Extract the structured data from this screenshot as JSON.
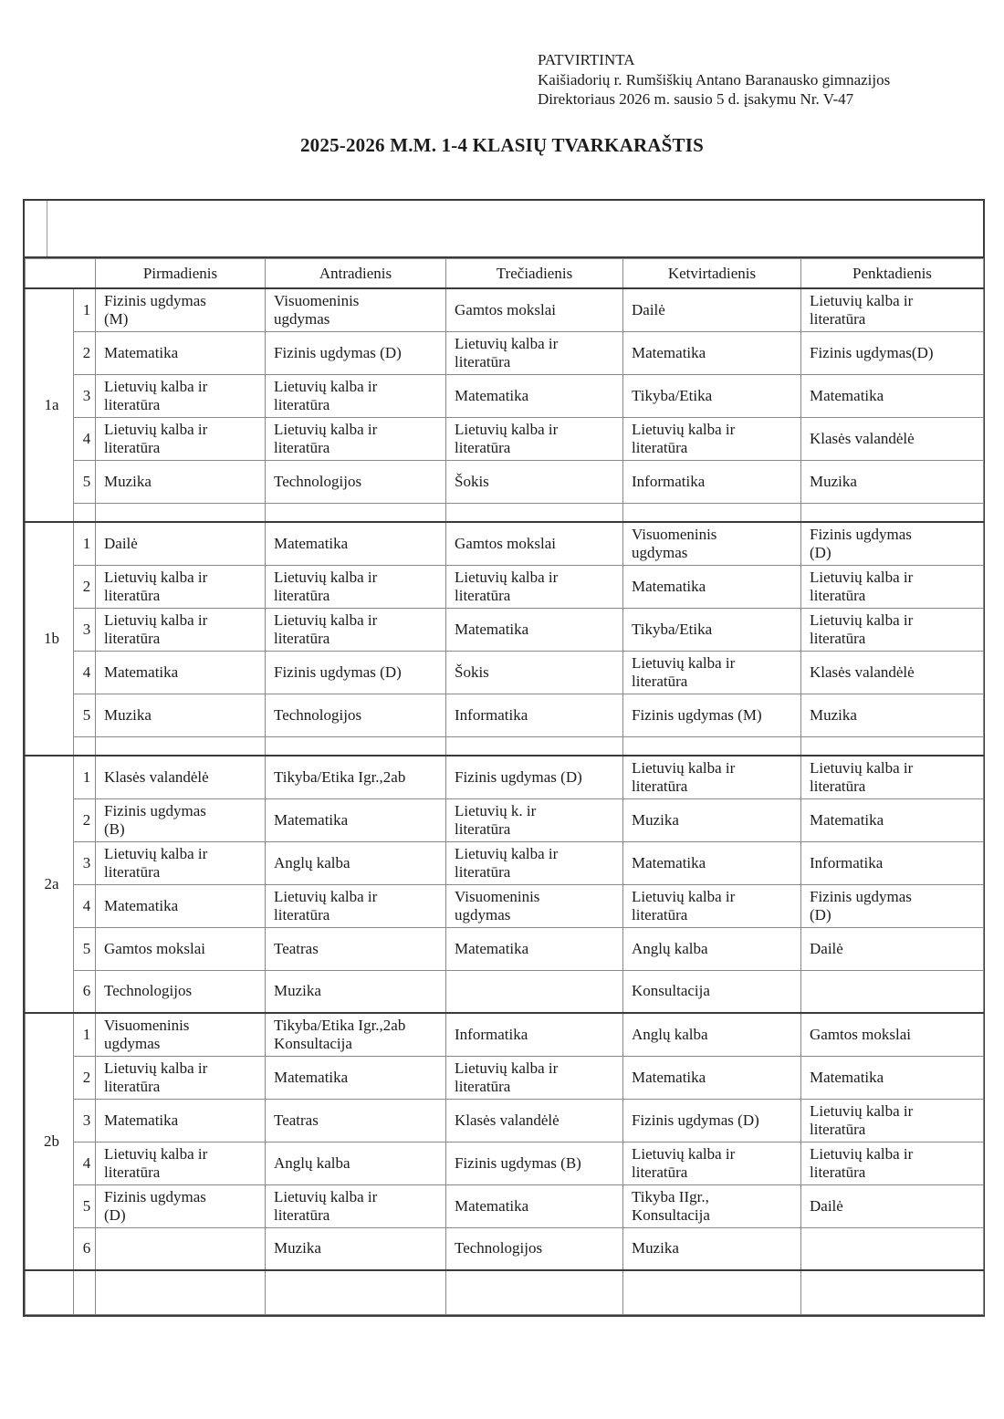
{
  "approval": {
    "lines": [
      "PATVIRTINTA",
      "Kaišiadorių r. Rumšiškių Antano Baranausko gimnazijos",
      "Direktoriaus 2026 m. sausio 5 d. įsakymu Nr. V-47"
    ]
  },
  "title": "2025-2026 M.M. 1-4 KLASIŲ TVARKARAŠTIS",
  "timetable": {
    "day_headers": [
      "Pirmadienis",
      "Antradienis",
      "Trečiadienis",
      "Ketvirtadienis",
      "Penktadienis"
    ],
    "groups": [
      {
        "label": "1a",
        "rows": [
          {
            "period": "1",
            "cells": [
              "Fizinis ugdymas\n(M)",
              "Visuomeninis\nugdymas",
              "Gamtos mokslai",
              "Dailė",
              "Lietuvių kalba ir\nliteratūra"
            ]
          },
          {
            "period": "2",
            "cells": [
              "Matematika",
              "Fizinis ugdymas (D)",
              "Lietuvių kalba ir\nliteratūra",
              "Matematika",
              "Fizinis ugdymas(D)"
            ]
          },
          {
            "period": "3",
            "cells": [
              "Lietuvių kalba ir\nliteratūra",
              "Lietuvių kalba ir\nliteratūra",
              "Matematika",
              "Tikyba/Etika",
              "Matematika"
            ]
          },
          {
            "period": "4",
            "cells": [
              "Lietuvių kalba ir\nliteratūra",
              "Lietuvių kalba ir\nliteratūra",
              "Lietuvių kalba ir\nliteratūra",
              "Lietuvių kalba ir\nliteratūra",
              "Klasės valandėlė"
            ]
          },
          {
            "period": "5",
            "cells": [
              "Muzika",
              "Technologijos",
              "Šokis",
              "Informatika",
              "Muzika"
            ]
          },
          {
            "period": "",
            "cells": [
              "",
              "",
              "",
              "",
              ""
            ]
          }
        ]
      },
      {
        "label": "1b",
        "rows": [
          {
            "period": "1",
            "cells": [
              "Dailė",
              "Matematika",
              "Gamtos mokslai",
              "Visuomeninis\nugdymas",
              "Fizinis ugdymas\n(D)"
            ]
          },
          {
            "period": "2",
            "cells": [
              "Lietuvių kalba ir\nliteratūra",
              "Lietuvių kalba ir\nliteratūra",
              "Lietuvių kalba ir\nliteratūra",
              "Matematika",
              "Lietuvių kalba ir\nliteratūra"
            ]
          },
          {
            "period": "3",
            "cells": [
              "Lietuvių kalba ir\nliteratūra",
              "Lietuvių kalba ir\nliteratūra",
              "Matematika",
              "Tikyba/Etika",
              "Lietuvių kalba ir\nliteratūra"
            ]
          },
          {
            "period": "4",
            "cells": [
              "Matematika",
              "Fizinis ugdymas (D)",
              "Šokis",
              "Lietuvių kalba ir\nliteratūra",
              "Klasės valandėlė"
            ]
          },
          {
            "period": "5",
            "cells": [
              "Muzika",
              "Technologijos",
              "Informatika",
              "Fizinis ugdymas (M)",
              "Muzika"
            ]
          },
          {
            "period": "",
            "cells": [
              "",
              "",
              "",
              "",
              ""
            ]
          }
        ]
      },
      {
        "label": "2a",
        "rows": [
          {
            "period": "1",
            "cells": [
              "Klasės valandėlė",
              "Tikyba/Etika Igr.,2ab",
              "Fizinis ugdymas (D)",
              "Lietuvių kalba ir\nliteratūra",
              "Lietuvių kalba ir\nliteratūra"
            ]
          },
          {
            "period": "2",
            "cells": [
              "Fizinis ugdymas\n(B)",
              "Matematika",
              "Lietuvių k. ir\nliteratūra",
              "Muzika",
              "Matematika"
            ]
          },
          {
            "period": "3",
            "cells": [
              "Lietuvių kalba ir\nliteratūra",
              "Anglų kalba",
              "Lietuvių kalba ir\nliteratūra",
              "Matematika",
              "Informatika"
            ]
          },
          {
            "period": "4",
            "cells": [
              "Matematika",
              "Lietuvių kalba ir\nliteratūra",
              "Visuomeninis\nugdymas",
              "Lietuvių kalba ir\nliteratūra",
              "Fizinis ugdymas\n(D)"
            ]
          },
          {
            "period": "5",
            "cells": [
              "Gamtos mokslai",
              "Teatras",
              "Matematika",
              "Anglų kalba",
              "Dailė"
            ]
          },
          {
            "period": "6",
            "cells": [
              "Technologijos",
              "Muzika",
              "",
              "Konsultacija",
              ""
            ]
          }
        ]
      },
      {
        "label": "2b",
        "rows": [
          {
            "period": "1",
            "cells": [
              "Visuomeninis\nugdymas",
              "Tikyba/Etika Igr.,2ab\nKonsultacija",
              "Informatika",
              "Anglų kalba",
              "Gamtos mokslai"
            ]
          },
          {
            "period": "2",
            "cells": [
              "Lietuvių kalba ir\nliteratūra",
              "Matematika",
              "Lietuvių kalba ir\nliteratūra",
              "Matematika",
              "Matematika"
            ]
          },
          {
            "period": "3",
            "cells": [
              "Matematika",
              "Teatras",
              "Klasės valandėlė",
              "Fizinis ugdymas (D)",
              "Lietuvių kalba ir\nliteratūra"
            ]
          },
          {
            "period": "4",
            "cells": [
              "Lietuvių kalba ir\nliteratūra",
              "Anglų kalba",
              "Fizinis ugdymas (B)",
              "Lietuvių kalba ir\nliteratūra",
              "Lietuvių kalba ir\nliteratūra"
            ]
          },
          {
            "period": "5",
            "cells": [
              "Fizinis ugdymas\n(D)",
              "Lietuvių kalba ir\nliteratūra",
              "Matematika",
              "Tikyba IIgr.,\nKonsultacija",
              "Dailė"
            ]
          },
          {
            "period": "6",
            "cells": [
              "",
              "Muzika",
              "Technologijos",
              "Muzika",
              ""
            ]
          }
        ]
      },
      {
        "label": "",
        "rows": [
          {
            "period": "",
            "cells": [
              "",
              "",
              "",
              "",
              ""
            ]
          }
        ]
      }
    ]
  },
  "colors": {
    "text": "#1b1b1b",
    "border_thin": "#8a8a8a",
    "border_thick": "#3a3a3a",
    "background": "#ffffff"
  }
}
